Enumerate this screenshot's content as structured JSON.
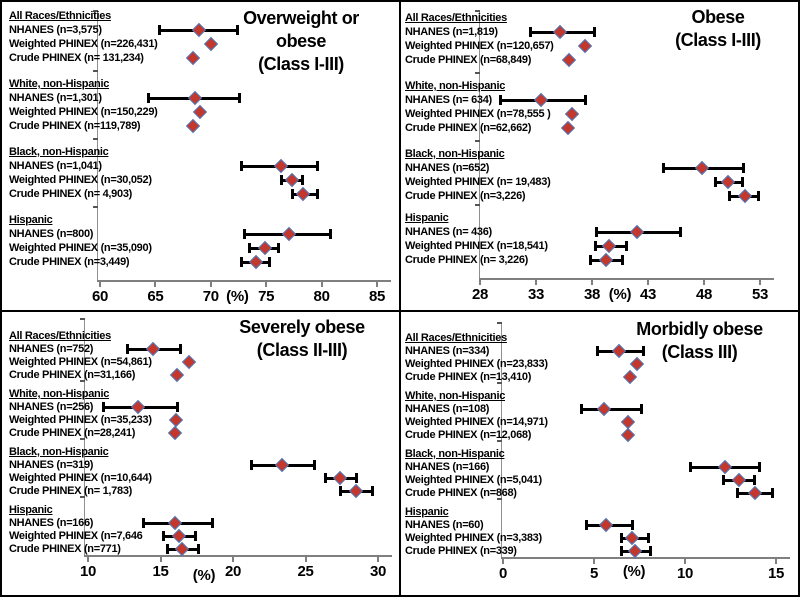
{
  "figure": {
    "background": "#ffffff",
    "border_color": "#000000"
  },
  "colors": {
    "diamond_fill": "#c4372c",
    "diamond_border": "#4a7cc0",
    "error_bar": "#000000",
    "axis_line": "#7f7f7f",
    "y_axis_line": "#8f8f8f",
    "text": "#000000"
  },
  "chart_data": [
    {
      "id": "overweight-or-obese",
      "type": "scatter",
      "title": "Overweight or obese (Class I-III)",
      "title_lines": [
        "Overweight or",
        "obese",
        "(Class I-III)"
      ],
      "xlabel": "(%)",
      "xlabel_at": 72.4,
      "xlim": [
        60,
        85
      ],
      "xticks": [
        60,
        65,
        70,
        75,
        80,
        85
      ],
      "grid": false,
      "legend_position": "none",
      "groups": [
        {
          "label": "All Races/Ethnicities",
          "rows": [
            {
              "label": "NHANES (n=3,575)",
              "value": 69.0,
              "ci": [
                65.4,
                72.4
              ]
            },
            {
              "label": "Weighted PHINEX (n=226,431)",
              "value": 70.1,
              "ci": [
                69.9,
                70.3
              ]
            },
            {
              "label": "Crude PHINEX (n= 131,234)",
              "value": 68.4,
              "ci": [
                68.2,
                68.6
              ]
            }
          ]
        },
        {
          "label": "White, non-Hispanic",
          "rows": [
            {
              "label": "NHANES (n=1,301)",
              "value": 68.6,
              "ci": [
                64.4,
                72.6
              ]
            },
            {
              "label": "Weighted PHINEX (n=150,229)",
              "value": 69.1,
              "ci": [
                68.9,
                69.3
              ]
            },
            {
              "label": "Crude PHINEX (n=119,789)",
              "value": 68.4,
              "ci": [
                68.2,
                68.6
              ]
            }
          ]
        },
        {
          "label": "Black,  non-Hispanic",
          "rows": [
            {
              "label": "NHANES (n=1,041)",
              "value": 76.4,
              "ci": [
                72.8,
                79.6
              ]
            },
            {
              "label": "Weighted PHINEX (n=30,052)",
              "value": 77.4,
              "ci": [
                76.4,
                78.3
              ]
            },
            {
              "label": "Crude PHINEX (n= 4,903)",
              "value": 78.4,
              "ci": [
                77.4,
                79.6
              ]
            }
          ]
        },
        {
          "label": "Hispanic",
          "rows": [
            {
              "label": "NHANES (n=800)",
              "value": 77.1,
              "ci": [
                73.0,
                80.8
              ]
            },
            {
              "label": "Weighted PHINEX (n=35,090)",
              "value": 74.9,
              "ci": [
                73.5,
                76.1
              ]
            },
            {
              "label": "Crude PHINEX (n=3,449)",
              "value": 74.1,
              "ci": [
                72.8,
                75.3
              ]
            }
          ]
        }
      ]
    },
    {
      "id": "obese",
      "type": "scatter",
      "title": "Obese (Class I-III)",
      "title_lines": [
        "Obese",
        "(Class I-III)"
      ],
      "xlabel": "(%)",
      "xlabel_at": 40.5,
      "xlim": [
        28,
        53
      ],
      "xticks": [
        28,
        33,
        38,
        43,
        48,
        53
      ],
      "grid": false,
      "legend_position": "none",
      "groups": [
        {
          "label": "All Races/Ethnicities",
          "rows": [
            {
              "label": "NHANES (n=1,819)",
              "value": 35.2,
              "ci": [
                32.5,
                38.2
              ]
            },
            {
              "label": "Weighted PHINEX (n=120,657)",
              "value": 37.4,
              "ci": [
                37.2,
                37.6
              ]
            },
            {
              "label": "Crude PHINEX (n=68,849)",
              "value": 36.0,
              "ci": [
                35.8,
                36.2
              ]
            }
          ]
        },
        {
          "label": "White, non-Hispanic",
          "rows": [
            {
              "label": "NHANES (n= 634)",
              "value": 33.5,
              "ci": [
                29.8,
                37.4
              ]
            },
            {
              "label": "Weighted PHINEX (n=78,555 )",
              "value": 36.3,
              "ci": [
                36.1,
                36.5
              ]
            },
            {
              "label": "Crude PHINEX (n=62,662)",
              "value": 35.9,
              "ci": [
                35.7,
                36.1
              ]
            }
          ]
        },
        {
          "label": "Black,  non-Hispanic",
          "rows": [
            {
              "label": "NHANES (n=652)",
              "value": 47.9,
              "ci": [
                44.4,
                51.5
              ]
            },
            {
              "label": "Weighted PHINEX (n= 19,483)",
              "value": 50.2,
              "ci": [
                49.0,
                51.4
              ]
            },
            {
              "label": "Crude PHINEX (n=3,226)",
              "value": 51.7,
              "ci": [
                50.3,
                52.9
              ]
            }
          ]
        },
        {
          "label": "Hispanic",
          "rows": [
            {
              "label": "NHANES (n= 436)",
              "value": 42.1,
              "ci": [
                38.4,
                45.9
              ]
            },
            {
              "label": "Weighted PHINEX (n=18,541)",
              "value": 39.6,
              "ci": [
                38.3,
                41.1
              ]
            },
            {
              "label": "Crude PHINEX (n= 3,226)",
              "value": 39.3,
              "ci": [
                37.9,
                40.7
              ]
            }
          ]
        }
      ]
    },
    {
      "id": "severely-obese",
      "type": "scatter",
      "title": "Severely obese (Class II-III)",
      "title_lines": [
        "Severely obese",
        "(Class II-III)"
      ],
      "xlabel": "(%)",
      "xlabel_at": 18.0,
      "xlim": [
        10,
        30
      ],
      "xticks": [
        10,
        15,
        20,
        25,
        30
      ],
      "grid": false,
      "legend_position": "none",
      "groups": [
        {
          "label": "All Races/Ethnicities",
          "rows": [
            {
              "label": "NHANES (n=752)",
              "value": 14.5,
              "ci": [
                12.7,
                16.4
              ]
            },
            {
              "label": "Weighted PHINEX (n=54,861)",
              "value": 17.0,
              "ci": [
                16.8,
                17.2
              ]
            },
            {
              "label": "Crude PHINEX (n=31,166)",
              "value": 16.2,
              "ci": [
                16.0,
                16.4
              ]
            }
          ]
        },
        {
          "label": "White, non-Hispanic",
          "rows": [
            {
              "label": "NHANES (n=256)",
              "value": 13.5,
              "ci": [
                11.1,
                16.2
              ]
            },
            {
              "label": "Weighted PHINEX (n=35,233)",
              "value": 16.1,
              "ci": [
                15.9,
                16.3
              ]
            },
            {
              "label": "Crude PHINEX (n=28,241)",
              "value": 16.0,
              "ci": [
                15.8,
                16.2
              ]
            }
          ]
        },
        {
          "label": "Black,  non-Hispanic",
          "rows": [
            {
              "label": "NHANES (n=319)",
              "value": 23.4,
              "ci": [
                21.3,
                25.6
              ]
            },
            {
              "label": "Weighted PHINEX (n=10,644)",
              "value": 27.4,
              "ci": [
                26.4,
                28.5
              ]
            },
            {
              "label": "Crude PHINEX (n= 1,783)",
              "value": 28.5,
              "ci": [
                27.4,
                29.6
              ]
            }
          ]
        },
        {
          "label": "Hispanic",
          "rows": [
            {
              "label": "NHANES (n=166)",
              "value": 16.0,
              "ci": [
                13.8,
                18.6
              ]
            },
            {
              "label": "Weighted PHINEX (n=7,646",
              "value": 16.3,
              "ci": [
                15.2,
                17.4
              ]
            },
            {
              "label": "Crude PHINEX (n=771)",
              "value": 16.5,
              "ci": [
                15.5,
                17.6
              ]
            }
          ]
        }
      ]
    },
    {
      "id": "morbidly-obese",
      "type": "scatter",
      "title": "Morbidly obese (Class III)",
      "title_lines": [
        "Morbidly  obese",
        "(Class III)"
      ],
      "xlabel": "(%)",
      "xlabel_at": 7.2,
      "xlim": [
        0,
        15
      ],
      "xticks": [
        0,
        5,
        10,
        15
      ],
      "grid": false,
      "legend_position": "none",
      "groups": [
        {
          "label": "All Races/Ethnicities",
          "rows": [
            {
              "label": "NHANES (n=334)",
              "value": 6.4,
              "ci": [
                5.2,
                7.7
              ]
            },
            {
              "label": "Weighted PHINEX (n=23,833)",
              "value": 7.4,
              "ci": [
                7.2,
                7.6
              ]
            },
            {
              "label": "Crude PHINEX (n=13,410)",
              "value": 7.0,
              "ci": [
                6.8,
                7.2
              ]
            }
          ]
        },
        {
          "label": "White, non-Hispanic",
          "rows": [
            {
              "label": "NHANES (n=108)",
              "value": 5.6,
              "ci": [
                4.3,
                7.6
              ]
            },
            {
              "label": "Weighted PHINEX (n=14,971)",
              "value": 6.9,
              "ci": [
                6.7,
                7.1
              ]
            },
            {
              "label": "Crude PHINEX (n=12,068)",
              "value": 6.9,
              "ci": [
                6.7,
                7.1
              ]
            }
          ]
        },
        {
          "label": "Black,  non-Hispanic",
          "rows": [
            {
              "label": "NHANES (n=166)",
              "value": 12.2,
              "ci": [
                10.3,
                14.1
              ]
            },
            {
              "label": "Weighted PHINEX (n=5,041)",
              "value": 13.0,
              "ci": [
                12.1,
                13.8
              ]
            },
            {
              "label": "Crude PHINEX (n=868)",
              "value": 13.9,
              "ci": [
                12.9,
                14.8
              ]
            }
          ]
        },
        {
          "label": "Hispanic",
          "rows": [
            {
              "label": "NHANES (n=60)",
              "value": 5.7,
              "ci": [
                4.6,
                7.1
              ]
            },
            {
              "label": "Weighted PHINEX (n=3,383)",
              "value": 7.1,
              "ci": [
                6.5,
                8.0
              ]
            },
            {
              "label": "Crude PHINEX (n=339)",
              "value": 7.3,
              "ci": [
                6.5,
                8.1
              ]
            }
          ]
        }
      ]
    }
  ]
}
